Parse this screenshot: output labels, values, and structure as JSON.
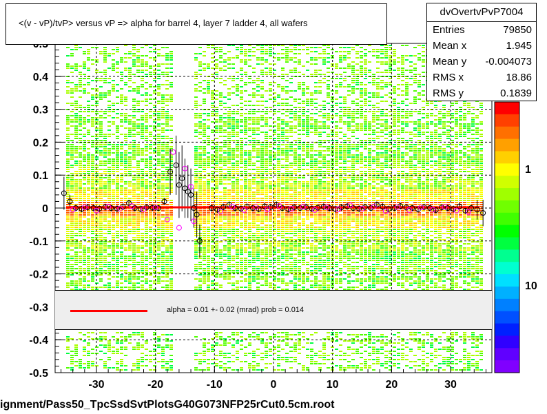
{
  "chart_data": {
    "type": "scatter",
    "title": "<(v - vP)/tvP> versus   vP => alpha for barrel 4, layer 7 ladder 4, all wafers",
    "xlabel": "",
    "ylabel": "",
    "xlim": [
      -37,
      37
    ],
    "ylim": [
      -0.5,
      0.5
    ],
    "xticks": [
      "-30",
      "-20",
      "-10",
      "0",
      "10",
      "20",
      "30"
    ],
    "yticks": [
      "-0.5",
      "-0.4",
      "-0.3",
      "-0.2",
      "-0.1",
      "0",
      "0.1",
      "0.2",
      "0.3",
      "0.4",
      "0.5"
    ],
    "grid": true,
    "colorbar_ticks": [
      "1",
      "10"
    ],
    "fit": {
      "name": "alpha",
      "value": 0.01,
      "error": 0.02,
      "unit": "mrad",
      "prob": 0.014
    },
    "series": [
      {
        "marker": "open-circle-black",
        "x": [
          -35.5,
          -34.5,
          -33.5,
          -32.5,
          -31.5,
          -30.5,
          -29.5,
          -28.5,
          -27.5,
          -26.5,
          -25.5,
          -24.5,
          -23.5,
          -22.5,
          -21.5,
          -20.5,
          -19.5,
          -18.5,
          -17.5,
          -16.5,
          -16.0,
          -15.5,
          -15.0,
          -14.5,
          -14.0,
          -13.5,
          -13.0,
          -12.5,
          -10.5,
          -9.5,
          -8.5,
          -7.5,
          -6.5,
          -5.5,
          -4.5,
          -3.5,
          -2.5,
          -1.5,
          -0.5,
          0.5,
          1.5,
          2.5,
          3.5,
          4.5,
          5.5,
          6.5,
          7.5,
          8.5,
          9.5,
          10.5,
          11.5,
          12.5,
          13.5,
          14.5,
          15.5,
          16.5,
          17.5,
          18.5,
          19.5,
          20.5,
          21.5,
          22.5,
          23.5,
          24.5,
          25.5,
          26.5,
          27.5,
          28.5,
          29.5,
          30.5,
          31.5,
          32.5,
          33.5,
          34.5,
          35.5
        ],
        "y": [
          0.045,
          0.02,
          0.0,
          -0.003,
          0.002,
          0.0,
          -0.002,
          0.003,
          0.0,
          -0.002,
          0.004,
          0.015,
          0.0,
          -0.003,
          0.002,
          0.001,
          0.0,
          0.02,
          0.11,
          0.13,
          0.07,
          0.09,
          0.06,
          0.05,
          0.04,
          0.0,
          -0.02,
          -0.1,
          0.0,
          -0.005,
          0.003,
          0.01,
          0.0,
          -0.002,
          0.004,
          0.0,
          -0.003,
          0.005,
          0.003,
          0.01,
          0.0,
          -0.004,
          0.002,
          0.0,
          0.003,
          -0.002,
          0.001,
          0.004,
          0.0,
          -0.003,
          0.002,
          0.005,
          0.0,
          -0.002,
          0.003,
          0.0,
          0.01,
          0.004,
          -0.003,
          0.0,
          0.006,
          0.002,
          0.0,
          -0.004,
          0.003,
          0.0,
          -0.006,
          0.002,
          0.0,
          -0.003,
          0.005,
          -0.008,
          0.0,
          -0.005,
          -0.015
        ],
        "yerr": [
          0.05,
          0.02,
          0.01,
          0.01,
          0.01,
          0.01,
          0.01,
          0.01,
          0.01,
          0.01,
          0.01,
          0.01,
          0.01,
          0.01,
          0.01,
          0.01,
          0.01,
          0.01,
          0.07,
          0.09,
          0.1,
          0.1,
          0.09,
          0.08,
          0.08,
          0.06,
          0.07,
          0.05,
          0.01,
          0.01,
          0.01,
          0.01,
          0.01,
          0.01,
          0.01,
          0.01,
          0.01,
          0.01,
          0.01,
          0.01,
          0.01,
          0.01,
          0.01,
          0.01,
          0.01,
          0.01,
          0.01,
          0.01,
          0.01,
          0.01,
          0.01,
          0.01,
          0.01,
          0.01,
          0.01,
          0.01,
          0.01,
          0.01,
          0.01,
          0.01,
          0.01,
          0.01,
          0.01,
          0.01,
          0.01,
          0.01,
          0.01,
          0.01,
          0.01,
          0.01,
          0.01,
          0.01,
          0.01,
          0.03,
          0.04
        ]
      },
      {
        "marker": "open-circle-magenta",
        "x": [
          -34.0,
          -32.0,
          -30.0,
          -28.0,
          -26.0,
          -24.0,
          -22.0,
          -20.0,
          -18.0,
          -17.0,
          -16.0,
          -15.0,
          -14.0,
          -13.5,
          -9.0,
          -7.0,
          -5.0,
          -3.0,
          -1.0,
          1.0,
          3.0,
          5.0,
          7.0,
          9.0,
          11.0,
          13.0,
          15.0,
          17.0,
          19.0,
          21.0,
          23.0,
          25.0,
          27.0,
          29.0,
          31.0,
          33.0
        ],
        "y": [
          -0.005,
          0.002,
          -0.008,
          0.004,
          -0.002,
          0.006,
          -0.004,
          0.002,
          -0.035,
          0.17,
          -0.06,
          0.12,
          0.065,
          -0.04,
          -0.01,
          0.004,
          -0.006,
          0.003,
          -0.004,
          0.006,
          -0.002,
          0.004,
          -0.006,
          0.002,
          -0.004,
          0.008,
          -0.002,
          0.004,
          -0.01,
          0.003,
          -0.006,
          0.002,
          -0.005,
          0.004,
          -0.008,
          -0.012
        ]
      }
    ]
  },
  "stats": {
    "name": "dvOvertvPvP7004",
    "rows": [
      {
        "label": "Entries",
        "value": "79850"
      },
      {
        "label": "Mean x",
        "value": "1.945"
      },
      {
        "label": "Mean y",
        "value": "-0.004073"
      },
      {
        "label": "RMS x",
        "value": "18.86"
      },
      {
        "label": "RMS y",
        "value": "0.1839"
      }
    ]
  },
  "legend": {
    "text": "alpha =     0.01  +-   0.02  (mrad)  prob = 0.014"
  },
  "footer": "ignment/Pass50_TpcSsdSvtPlotsG40G073NFP25rCut0.5cm.root",
  "colors": {
    "fit_line": "#ff0000",
    "frame_bg": "#ffffff",
    "legend_bg": "#eeeeee"
  }
}
